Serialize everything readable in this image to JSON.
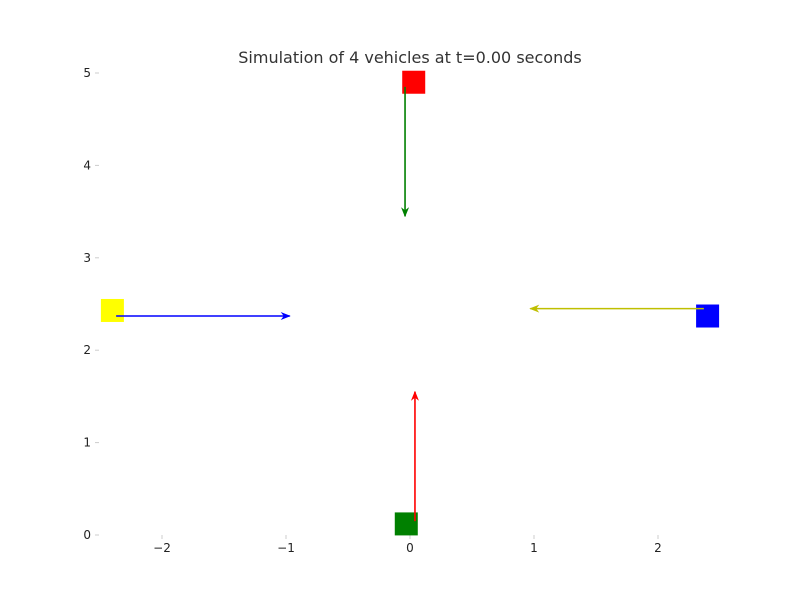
{
  "chart_data": {
    "type": "scatter",
    "title": "Simulation of 4 vehicles at t=0.00 seconds",
    "xlabel": "",
    "ylabel": "",
    "xlim": [
      -2.5,
      2.5
    ],
    "ylim": [
      0,
      5
    ],
    "xticks": [
      -2,
      -1,
      0,
      1,
      2
    ],
    "xtick_labels": [
      "−2",
      "−1",
      "0",
      "1",
      "2"
    ],
    "yticks": [
      0,
      1,
      2,
      3,
      4,
      5
    ],
    "ytick_labels": [
      "0",
      "1",
      "2",
      "3",
      "4",
      "5"
    ],
    "grid": false,
    "vehicles": [
      {
        "color": "#ff0000",
        "x": 0.03,
        "y": 4.9,
        "arrow_start": [
          -0.04,
          4.85
        ],
        "arrow_end": [
          -0.04,
          3.45
        ],
        "arrow_color": "#008000"
      },
      {
        "color": "#008000",
        "x": -0.03,
        "y": 0.12,
        "arrow_start": [
          0.04,
          0.15
        ],
        "arrow_end": [
          0.04,
          1.55
        ],
        "arrow_color": "#ff0000"
      },
      {
        "color": "#ffff00",
        "x": -2.4,
        "y": 2.43,
        "arrow_start": [
          -2.37,
          2.37
        ],
        "arrow_end": [
          -0.97,
          2.37
        ],
        "arrow_color": "#0000ff"
      },
      {
        "color": "#0000ff",
        "x": 2.4,
        "y": 2.37,
        "arrow_start": [
          2.37,
          2.45
        ],
        "arrow_end": [
          0.97,
          2.45
        ],
        "arrow_color": "#bfbf00"
      }
    ]
  }
}
